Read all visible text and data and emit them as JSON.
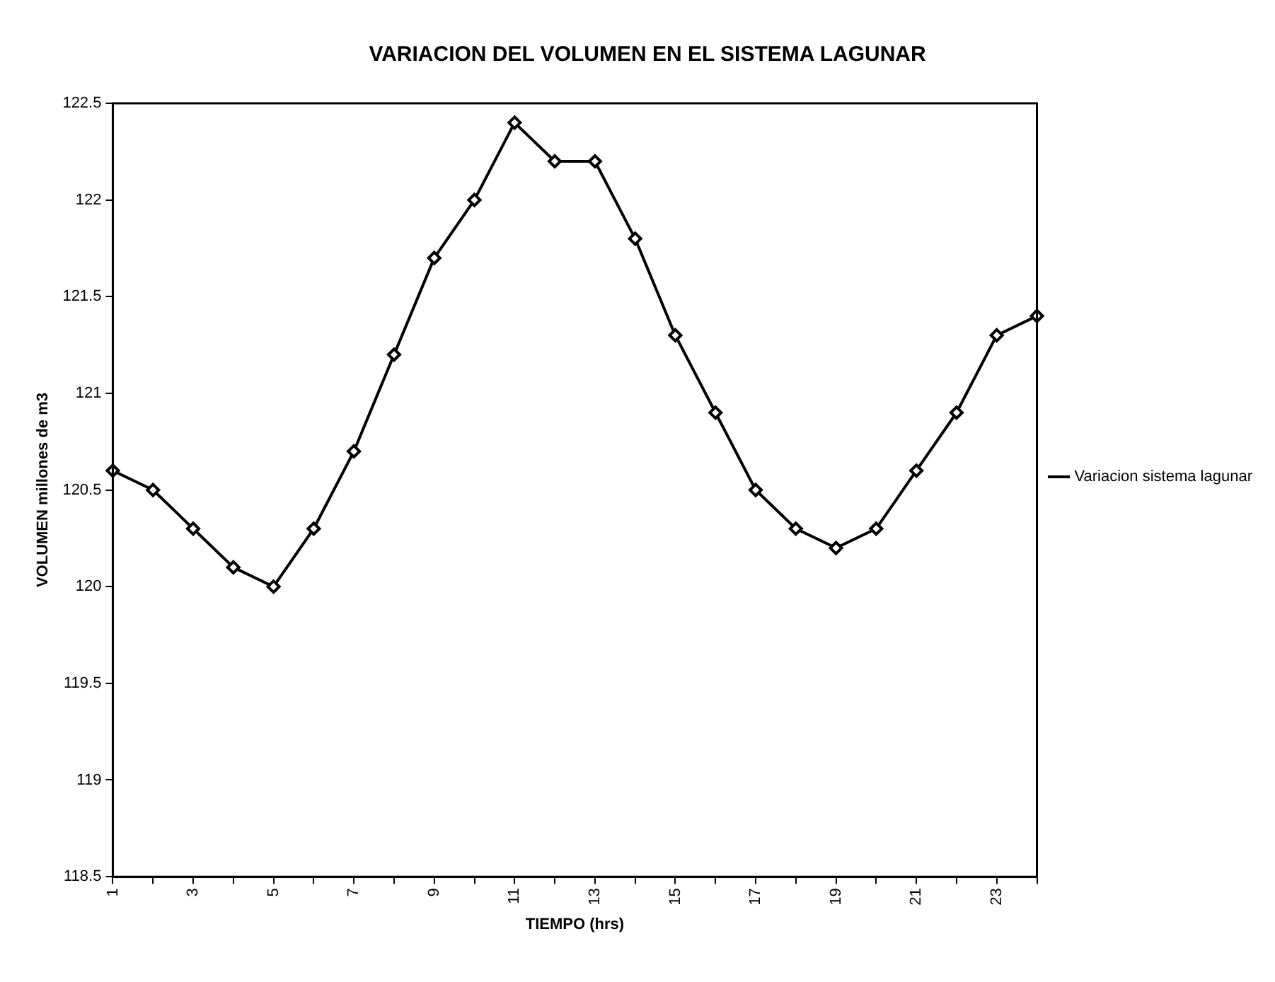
{
  "chart_data": {
    "type": "line",
    "title": "VARIACION DEL VOLUMEN EN EL SISTEMA LAGUNAR",
    "xlabel": "TIEMPO (hrs)",
    "ylabel": "VOLUMEN millones de m3",
    "categories": [
      "1",
      null,
      "3",
      null,
      "5",
      null,
      "7",
      null,
      "9",
      null,
      "11",
      null,
      "13",
      null,
      "15",
      null,
      "17",
      null,
      "19",
      null,
      "21",
      null,
      "23",
      null
    ],
    "series": [
      {
        "name": "Variacion sistema lagunar",
        "color": "#000000",
        "values": [
          120.6,
          120.5,
          120.3,
          120.1,
          120.0,
          120.3,
          120.7,
          121.2,
          121.7,
          122.0,
          122.4,
          122.2,
          122.2,
          121.8,
          121.3,
          120.9,
          120.5,
          120.3,
          120.2,
          120.3,
          120.6,
          120.9,
          121.3,
          121.4
        ]
      }
    ],
    "ylim": [
      118.5,
      122.5
    ],
    "yticks": [
      118.5,
      119,
      119.5,
      120,
      120.5,
      121,
      121.5,
      122,
      122.5
    ],
    "grid": false,
    "legend": "right",
    "marker": "diamond",
    "line_style": "solid"
  }
}
